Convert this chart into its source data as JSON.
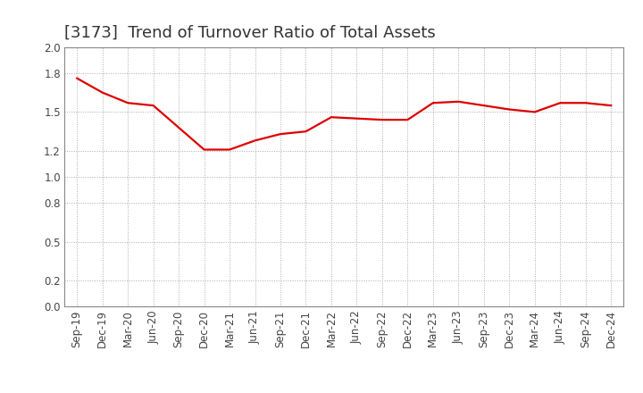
{
  "title": "[3173]  Trend of Turnover Ratio of Total Assets",
  "x_labels": [
    "Sep-19",
    "Dec-19",
    "Mar-20",
    "Jun-20",
    "Sep-20",
    "Dec-20",
    "Mar-21",
    "Jun-21",
    "Sep-21",
    "Dec-21",
    "Mar-22",
    "Jun-22",
    "Sep-22",
    "Dec-22",
    "Mar-23",
    "Jun-23",
    "Sep-23",
    "Dec-23",
    "Mar-24",
    "Jun-24",
    "Sep-24",
    "Dec-24"
  ],
  "y_values": [
    1.76,
    1.65,
    1.57,
    1.55,
    1.38,
    1.21,
    1.21,
    1.28,
    1.33,
    1.35,
    1.46,
    1.45,
    1.44,
    1.44,
    1.57,
    1.58,
    1.55,
    1.52,
    1.5,
    1.57,
    1.57,
    1.55
  ],
  "line_color": "#dd0000",
  "line_width": 1.6,
  "ylim": [
    0.0,
    2.0
  ],
  "yticks": [
    0.0,
    0.2,
    0.5,
    0.8,
    1.0,
    1.2,
    1.5,
    1.8,
    2.0
  ],
  "background_color": "#ffffff",
  "grid_color": "#aaaaaa",
  "title_fontsize": 13,
  "tick_fontsize": 8.5,
  "title_color": "#333333"
}
